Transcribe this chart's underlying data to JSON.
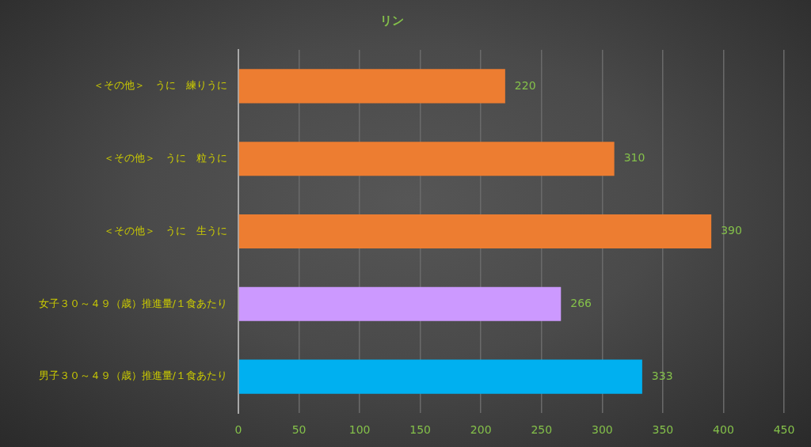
{
  "chart_data": {
    "type": "bar",
    "orientation": "horizontal",
    "title": "リン",
    "categories": [
      "＜その他＞　うに　練りうに",
      "＜その他＞　うに　粒うに",
      "＜その他＞　うに　生うに",
      "女子３０～４９（歳）推進量/１食あたり",
      "男子３０～４９（歳）推進量/１食あたり"
    ],
    "values": [
      220,
      310,
      390,
      266,
      333
    ],
    "colors": [
      "#ed7d31",
      "#ed7d31",
      "#ed7d31",
      "#cc99ff",
      "#00b0f0"
    ],
    "xlim": [
      0,
      450
    ],
    "xticks": [
      0,
      50,
      100,
      150,
      200,
      250,
      300,
      350,
      400,
      450
    ],
    "grid": "x",
    "data_labels": true
  }
}
